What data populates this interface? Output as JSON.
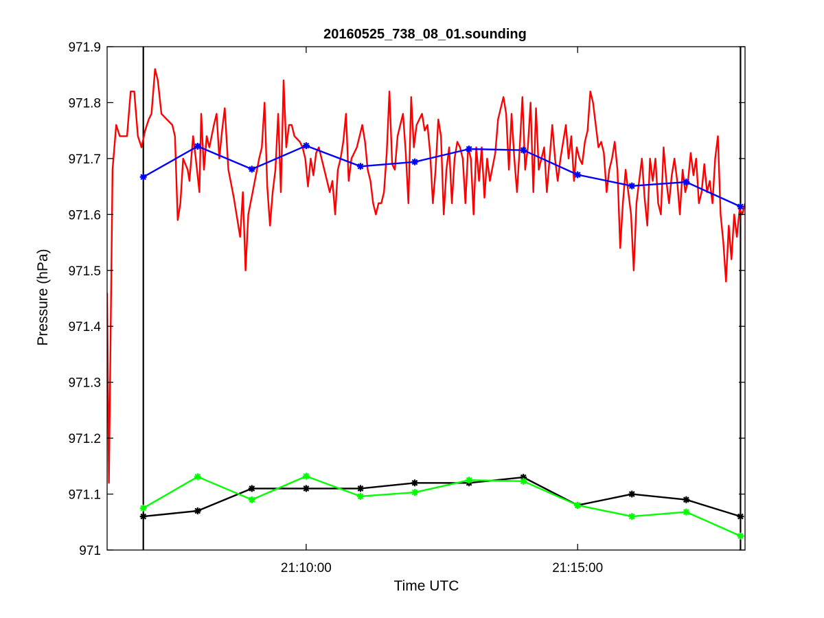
{
  "chart_data": {
    "type": "line",
    "title": "20160525_738_08_01.sounding",
    "xlabel": "Time UTC",
    "ylabel": "Pressure (hPa)",
    "xlim": [
      "21:06:20",
      "21:18:05"
    ],
    "ylim": [
      971,
      971.9
    ],
    "xticks": [
      {
        "label": "21:10:00",
        "value": "21:10:00"
      },
      {
        "label": "21:15:00",
        "value": "21:15:00"
      }
    ],
    "yticks": [
      {
        "label": "971",
        "value": 971.0
      },
      {
        "label": "971.1",
        "value": 971.1
      },
      {
        "label": "971.2",
        "value": 971.2
      },
      {
        "label": "971.3",
        "value": 971.3
      },
      {
        "label": "971.4",
        "value": 971.4
      },
      {
        "label": "971.5",
        "value": 971.5
      },
      {
        "label": "971.6",
        "value": 971.6
      },
      {
        "label": "971.7",
        "value": 971.7
      },
      {
        "label": "971.8",
        "value": 971.8
      },
      {
        "label": "971.9",
        "value": 971.9
      }
    ],
    "grid": false,
    "legend": "none",
    "vlines": [
      {
        "x": "21:07:00",
        "color": "#000000"
      },
      {
        "x": "21:18:00",
        "color": "#000000"
      }
    ],
    "series": [
      {
        "color": "#ff0000",
        "marker": "none",
        "points": [
          [
            "21:06:20",
            971.46
          ],
          [
            "21:06:22",
            971.12
          ],
          [
            "21:06:26",
            971.68
          ],
          [
            "21:06:30",
            971.76
          ],
          [
            "21:06:34",
            971.74
          ],
          [
            "21:06:38",
            971.74
          ],
          [
            "21:06:42",
            971.74
          ],
          [
            "21:06:46",
            971.82
          ],
          [
            "21:06:50",
            971.82
          ],
          [
            "21:06:54",
            971.74
          ],
          [
            "21:06:58",
            971.72
          ],
          [
            "21:07:02",
            971.75
          ],
          [
            "21:07:06",
            971.77
          ],
          [
            "21:07:09",
            971.78
          ],
          [
            "21:07:13",
            971.86
          ],
          [
            "21:07:16",
            971.84
          ],
          [
            "21:07:20",
            971.78
          ],
          [
            "21:07:26",
            971.77
          ],
          [
            "21:07:32",
            971.76
          ],
          [
            "21:07:35",
            971.74
          ],
          [
            "21:07:38",
            971.59
          ],
          [
            "21:07:41",
            971.62
          ],
          [
            "21:07:44",
            971.7
          ],
          [
            "21:07:49",
            971.68
          ],
          [
            "21:07:51",
            971.66
          ],
          [
            "21:07:55",
            971.74
          ],
          [
            "21:07:58",
            971.7
          ],
          [
            "21:08:02",
            971.64
          ],
          [
            "21:08:04",
            971.78
          ],
          [
            "21:08:07",
            971.68
          ],
          [
            "21:08:10",
            971.74
          ],
          [
            "21:08:13",
            971.72
          ],
          [
            "21:08:18",
            971.76
          ],
          [
            "21:08:21",
            971.78
          ],
          [
            "21:08:24",
            971.7
          ],
          [
            "21:08:27",
            971.75
          ],
          [
            "21:08:30",
            971.79
          ],
          [
            "21:08:34",
            971.68
          ],
          [
            "21:08:40",
            971.63
          ],
          [
            "21:08:47",
            971.56
          ],
          [
            "21:08:50",
            971.64
          ],
          [
            "21:08:53",
            971.5
          ],
          [
            "21:08:56",
            971.6
          ],
          [
            "21:09:02",
            971.65
          ],
          [
            "21:09:08",
            971.7
          ],
          [
            "21:09:11",
            971.72
          ],
          [
            "21:09:14",
            971.8
          ],
          [
            "21:09:17",
            971.65
          ],
          [
            "21:09:20",
            971.58
          ],
          [
            "21:09:23",
            971.64
          ],
          [
            "21:09:26",
            971.68
          ],
          [
            "21:09:29",
            971.78
          ],
          [
            "21:09:32",
            971.64
          ],
          [
            "21:09:35",
            971.84
          ],
          [
            "21:09:38",
            971.72
          ],
          [
            "21:09:41",
            971.76
          ],
          [
            "21:09:44",
            971.76
          ],
          [
            "21:09:47",
            971.74
          ],
          [
            "21:09:53",
            971.73
          ],
          [
            "21:09:56",
            971.72
          ],
          [
            "21:09:59",
            971.7
          ],
          [
            "21:10:02",
            971.65
          ],
          [
            "21:10:05",
            971.7
          ],
          [
            "21:10:08",
            971.67
          ],
          [
            "21:10:11",
            971.71
          ],
          [
            "21:10:14",
            971.72
          ],
          [
            "21:10:20",
            971.68
          ],
          [
            "21:10:26",
            971.64
          ],
          [
            "21:10:29",
            971.66
          ],
          [
            "21:10:32",
            971.6
          ],
          [
            "21:10:35",
            971.68
          ],
          [
            "21:10:38",
            971.7
          ],
          [
            "21:10:41",
            971.73
          ],
          [
            "21:10:44",
            971.78
          ],
          [
            "21:10:47",
            971.66
          ],
          [
            "21:10:50",
            971.7
          ],
          [
            "21:10:56",
            971.72
          ],
          [
            "21:11:02",
            971.76
          ],
          [
            "21:11:05",
            971.73
          ],
          [
            "21:11:08",
            971.68
          ],
          [
            "21:11:11",
            971.66
          ],
          [
            "21:11:14",
            971.62
          ],
          [
            "21:11:17",
            971.6
          ],
          [
            "21:11:20",
            971.62
          ],
          [
            "21:11:23",
            971.62
          ],
          [
            "21:11:26",
            971.64
          ],
          [
            "21:11:29",
            971.71
          ],
          [
            "21:11:32",
            971.82
          ],
          [
            "21:11:35",
            971.69
          ],
          [
            "21:11:38",
            971.68
          ],
          [
            "21:11:41",
            971.74
          ],
          [
            "21:11:44",
            971.76
          ],
          [
            "21:11:47",
            971.78
          ],
          [
            "21:11:50",
            971.71
          ],
          [
            "21:11:53",
            971.62
          ],
          [
            "21:11:56",
            971.81
          ],
          [
            "21:11:59",
            971.72
          ],
          [
            "21:12:02",
            971.76
          ],
          [
            "21:12:05",
            971.77
          ],
          [
            "21:12:08",
            971.78
          ],
          [
            "21:12:11",
            971.75
          ],
          [
            "21:12:14",
            971.76
          ],
          [
            "21:12:17",
            971.71
          ],
          [
            "21:12:20",
            971.62
          ],
          [
            "21:12:23",
            971.68
          ],
          [
            "21:12:26",
            971.77
          ],
          [
            "21:12:29",
            971.74
          ],
          [
            "21:12:32",
            971.6
          ],
          [
            "21:12:35",
            971.68
          ],
          [
            "21:12:38",
            971.72
          ],
          [
            "21:12:41",
            971.62
          ],
          [
            "21:12:44",
            971.7
          ],
          [
            "21:12:47",
            971.73
          ],
          [
            "21:12:50",
            971.72
          ],
          [
            "21:12:53",
            971.7
          ],
          [
            "21:12:56",
            971.62
          ],
          [
            "21:12:59",
            971.72
          ],
          [
            "21:13:02",
            971.7
          ],
          [
            "21:13:05",
            971.6
          ],
          [
            "21:13:08",
            971.72
          ],
          [
            "21:13:11",
            971.66
          ],
          [
            "21:13:14",
            971.72
          ],
          [
            "21:13:17",
            971.63
          ],
          [
            "21:13:20",
            971.7
          ],
          [
            "21:13:23",
            971.66
          ],
          [
            "21:13:29",
            971.71
          ],
          [
            "21:13:32",
            971.77
          ],
          [
            "21:13:35",
            971.79
          ],
          [
            "21:13:38",
            971.81
          ],
          [
            "21:13:41",
            971.78
          ],
          [
            "21:13:44",
            971.68
          ],
          [
            "21:13:47",
            971.78
          ],
          [
            "21:13:50",
            971.7
          ],
          [
            "21:13:53",
            971.64
          ],
          [
            "21:13:56",
            971.72
          ],
          [
            "21:13:59",
            971.81
          ],
          [
            "21:14:02",
            971.68
          ],
          [
            "21:14:05",
            971.72
          ],
          [
            "21:14:08",
            971.8
          ],
          [
            "21:14:11",
            971.64
          ],
          [
            "21:14:14",
            971.79
          ],
          [
            "21:14:17",
            971.68
          ],
          [
            "21:14:20",
            971.7
          ],
          [
            "21:14:23",
            971.72
          ],
          [
            "21:14:26",
            971.64
          ],
          [
            "21:14:29",
            971.7
          ],
          [
            "21:14:32",
            971.76
          ],
          [
            "21:14:35",
            971.7
          ],
          [
            "21:14:38",
            971.66
          ],
          [
            "21:14:41",
            971.7
          ],
          [
            "21:14:47",
            971.76
          ],
          [
            "21:14:50",
            971.7
          ],
          [
            "21:14:53",
            971.74
          ],
          [
            "21:14:56",
            971.66
          ],
          [
            "21:14:59",
            971.72
          ],
          [
            "21:15:02",
            971.7
          ],
          [
            "21:15:05",
            971.69
          ],
          [
            "21:15:08",
            971.73
          ],
          [
            "21:15:11",
            971.75
          ],
          [
            "21:15:14",
            971.82
          ],
          [
            "21:15:17",
            971.8
          ],
          [
            "21:15:20",
            971.76
          ],
          [
            "21:15:23",
            971.72
          ],
          [
            "21:15:26",
            971.73
          ],
          [
            "21:15:29",
            971.71
          ],
          [
            "21:15:32",
            971.64
          ],
          [
            "21:15:35",
            971.68
          ],
          [
            "21:15:38",
            971.7
          ],
          [
            "21:15:41",
            971.73
          ],
          [
            "21:15:44",
            971.68
          ],
          [
            "21:15:47",
            971.54
          ],
          [
            "21:15:50",
            971.62
          ],
          [
            "21:15:53",
            971.68
          ],
          [
            "21:15:56",
            971.64
          ],
          [
            "21:15:59",
            971.6
          ],
          [
            "21:16:02",
            971.5
          ],
          [
            "21:16:05",
            971.62
          ],
          [
            "21:16:08",
            971.66
          ],
          [
            "21:16:11",
            971.7
          ],
          [
            "21:16:14",
            971.63
          ],
          [
            "21:16:17",
            971.58
          ],
          [
            "21:16:20",
            971.7
          ],
          [
            "21:16:23",
            971.66
          ],
          [
            "21:16:26",
            971.7
          ],
          [
            "21:16:29",
            971.62
          ],
          [
            "21:16:32",
            971.6
          ],
          [
            "21:16:35",
            971.72
          ],
          [
            "21:16:38",
            971.66
          ],
          [
            "21:16:41",
            971.62
          ],
          [
            "21:16:44",
            971.67
          ],
          [
            "21:16:47",
            971.7
          ],
          [
            "21:16:50",
            971.66
          ],
          [
            "21:16:53",
            971.6
          ],
          [
            "21:16:56",
            971.68
          ],
          [
            "21:16:59",
            971.64
          ],
          [
            "21:17:02",
            971.66
          ],
          [
            "21:17:05",
            971.71
          ],
          [
            "21:17:08",
            971.67
          ],
          [
            "21:17:11",
            971.7
          ],
          [
            "21:17:14",
            971.62
          ],
          [
            "21:17:17",
            971.64
          ],
          [
            "21:17:20",
            971.69
          ],
          [
            "21:17:23",
            971.64
          ],
          [
            "21:17:26",
            971.66
          ],
          [
            "21:17:29",
            971.62
          ],
          [
            "21:17:32",
            971.7
          ],
          [
            "21:17:35",
            971.74
          ],
          [
            "21:17:38",
            971.6
          ],
          [
            "21:17:41",
            971.55
          ],
          [
            "21:17:44",
            971.48
          ],
          [
            "21:17:47",
            971.58
          ],
          [
            "21:17:50",
            971.52
          ],
          [
            "21:17:53",
            971.6
          ],
          [
            "21:17:56",
            971.56
          ],
          [
            "21:17:59",
            971.61
          ],
          [
            "21:18:02",
            971.6
          ],
          [
            "21:18:05",
            971.62
          ]
        ]
      },
      {
        "color": "#0000ff",
        "marker": "asterisk",
        "points": [
          [
            "21:07:00",
            971.667
          ],
          [
            "21:08:00",
            971.722
          ],
          [
            "21:09:00",
            971.681
          ],
          [
            "21:10:00",
            971.723
          ],
          [
            "21:11:00",
            971.686
          ],
          [
            "21:12:00",
            971.694
          ],
          [
            "21:13:00",
            971.717
          ],
          [
            "21:14:00",
            971.715
          ],
          [
            "21:15:00",
            971.671
          ],
          [
            "21:16:00",
            971.651
          ],
          [
            "21:17:00",
            971.658
          ],
          [
            "21:18:00",
            971.614
          ]
        ]
      },
      {
        "color": "#000000",
        "marker": "asterisk",
        "points": [
          [
            "21:07:00",
            971.06
          ],
          [
            "21:08:00",
            971.07
          ],
          [
            "21:09:00",
            971.11
          ],
          [
            "21:10:00",
            971.11
          ],
          [
            "21:11:00",
            971.11
          ],
          [
            "21:12:00",
            971.12
          ],
          [
            "21:13:00",
            971.12
          ],
          [
            "21:14:00",
            971.13
          ],
          [
            "21:15:00",
            971.08
          ],
          [
            "21:16:00",
            971.1
          ],
          [
            "21:17:00",
            971.09
          ],
          [
            "21:18:00",
            971.06
          ]
        ]
      },
      {
        "color": "#00ff00",
        "marker": "asterisk",
        "points": [
          [
            "21:07:00",
            971.075
          ],
          [
            "21:08:00",
            971.131
          ],
          [
            "21:09:00",
            971.09
          ],
          [
            "21:10:00",
            971.132
          ],
          [
            "21:11:00",
            971.096
          ],
          [
            "21:12:00",
            971.103
          ],
          [
            "21:13:00",
            971.125
          ],
          [
            "21:14:00",
            971.123
          ],
          [
            "21:15:00",
            971.08
          ],
          [
            "21:16:00",
            971.06
          ],
          [
            "21:17:00",
            971.068
          ],
          [
            "21:18:00",
            971.025
          ]
        ]
      }
    ]
  }
}
